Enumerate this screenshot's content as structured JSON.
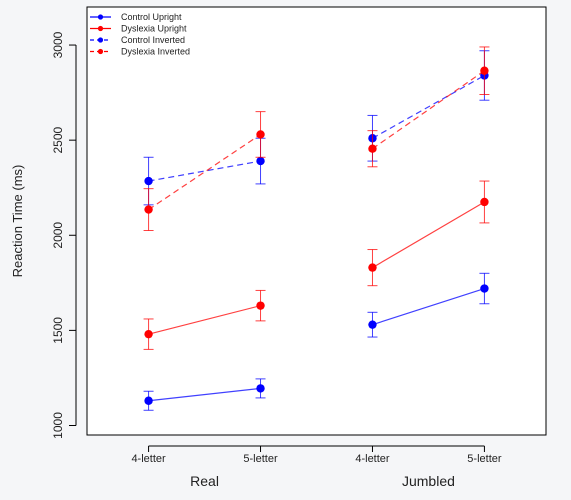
{
  "chart_data": {
    "type": "line",
    "ylabel": "Reaction Time (ms)",
    "ylim": [
      950,
      3200
    ],
    "yticks": [
      1000,
      1500,
      2000,
      2500,
      3000
    ],
    "x_positions": [
      1,
      2,
      3,
      4
    ],
    "xlim": [
      0.45,
      4.55
    ],
    "tick_labels": [
      "4-letter",
      "5-letter",
      "4-letter",
      "5-letter"
    ],
    "groups": [
      {
        "label": "Real",
        "span": [
          1,
          2
        ]
      },
      {
        "label": "Jumbled",
        "span": [
          3,
          4
        ]
      }
    ],
    "series": [
      {
        "name": "Control Upright",
        "color": "#0000ff",
        "style": "solid",
        "segments": [
          [
            {
              "x": 1,
              "y": 1130,
              "err": 50
            },
            {
              "x": 2,
              "y": 1195,
              "err": 50
            }
          ],
          [
            {
              "x": 3,
              "y": 1530,
              "err": 65
            },
            {
              "x": 4,
              "y": 1720,
              "err": 80
            }
          ]
        ]
      },
      {
        "name": "Dyslexia Upright",
        "color": "#ff0000",
        "style": "solid",
        "segments": [
          [
            {
              "x": 1,
              "y": 1480,
              "err": 80
            },
            {
              "x": 2,
              "y": 1630,
              "err": 80
            }
          ],
          [
            {
              "x": 3,
              "y": 1830,
              "err": 95
            },
            {
              "x": 4,
              "y": 2175,
              "err": 110
            }
          ]
        ]
      },
      {
        "name": "Control Inverted",
        "color": "#0000ff",
        "style": "dashed",
        "segments": [
          [
            {
              "x": 1,
              "y": 2285,
              "err": 125
            },
            {
              "x": 2,
              "y": 2390,
              "err": 120
            }
          ],
          [
            {
              "x": 3,
              "y": 2510,
              "err": 120
            },
            {
              "x": 4,
              "y": 2840,
              "err": 130
            }
          ]
        ]
      },
      {
        "name": "Dyslexia Inverted",
        "color": "#ff0000",
        "style": "dashed",
        "segments": [
          [
            {
              "x": 1,
              "y": 2135,
              "err": 110
            },
            {
              "x": 2,
              "y": 2530,
              "err": 120
            }
          ],
          [
            {
              "x": 3,
              "y": 2455,
              "err": 95
            },
            {
              "x": 4,
              "y": 2865,
              "err": 125
            }
          ]
        ]
      }
    ],
    "legend_position": "top-left",
    "grid": false
  }
}
